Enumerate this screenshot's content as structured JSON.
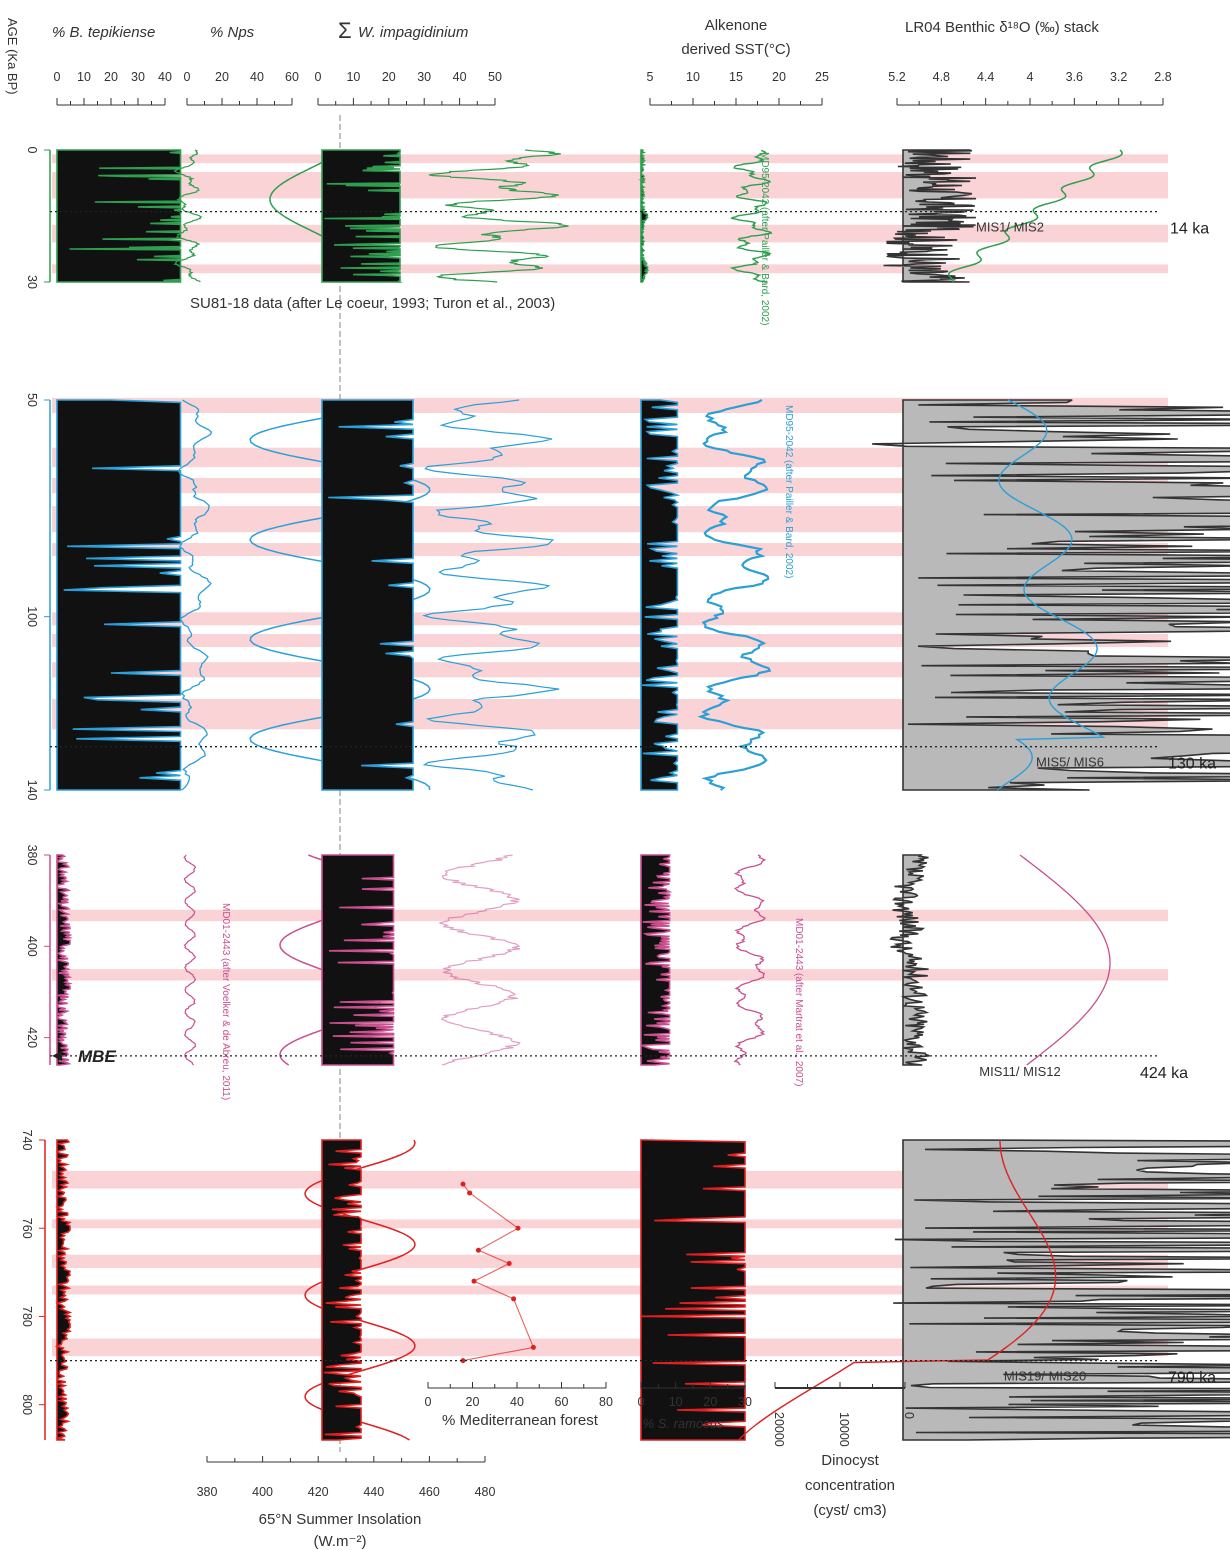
{
  "chart_data": {
    "type": "line",
    "figure": "multi-proxy stratigraphic panels",
    "y_axis": {
      "label": "AGE (Ka BP)",
      "panels": [
        {
          "id": "p1",
          "color": "#2e9e4f",
          "ticks": [
            "0",
            "30"
          ],
          "range": [
            0,
            30
          ]
        },
        {
          "id": "p2",
          "color": "#2a9fd8",
          "ticks": [
            "50",
            "100",
            "140"
          ],
          "range": [
            50,
            140
          ]
        },
        {
          "id": "p3",
          "color": "#c94f8f",
          "ticks": [
            "380",
            "400",
            "420"
          ],
          "range": [
            380,
            426
          ]
        },
        {
          "id": "p4",
          "color": "#e02020",
          "ticks": [
            "740",
            "760",
            "780",
            "800"
          ],
          "range": [
            740,
            808
          ]
        }
      ]
    },
    "columns": [
      {
        "id": "btep",
        "label": "% B. tepikiense",
        "ticks": [
          "0",
          "10",
          "20",
          "30",
          "40"
        ],
        "xlim": [
          0,
          40
        ]
      },
      {
        "id": "nps",
        "label": "% Nps",
        "ticks": [
          "0",
          "20",
          "40",
          "60"
        ],
        "xlim": [
          0,
          60
        ]
      },
      {
        "id": "wimp",
        "label": "W. impagidinium",
        "prefix": "Σ",
        "ticks": [
          "0",
          "10",
          "20",
          "30",
          "40",
          "50"
        ],
        "xlim": [
          0,
          50
        ]
      },
      {
        "id": "sst",
        "label_line1": "Alkenone",
        "label_line2": "derived SST(°C)",
        "ticks": [
          "5",
          "10",
          "15",
          "20",
          "25"
        ],
        "xlim": [
          5,
          25
        ]
      },
      {
        "id": "lr04",
        "label": "LR04 Benthic δ¹⁸O (‰) stack",
        "ticks": [
          "5.2",
          "4.8",
          "4.4",
          "4",
          "3.6",
          "3.2",
          "2.8"
        ],
        "xlim": [
          5.2,
          2.8
        ]
      }
    ],
    "bottom_axes": [
      {
        "id": "medforest",
        "label": "% Mediterranean forest",
        "ticks": [
          "0",
          "20",
          "40",
          "60",
          "80"
        ],
        "xlim": [
          0,
          80
        ]
      },
      {
        "id": "sramosus",
        "label": "% S. ramosus",
        "ticks": [
          "0",
          "10",
          "20",
          "30"
        ],
        "xlim": [
          0,
          30
        ]
      },
      {
        "id": "dino",
        "label_line1": "Dinocyst",
        "label_line2": "concentration",
        "label_line3": "(cyst/ cm3)",
        "ticks": [
          "20000",
          "10000",
          "0"
        ],
        "xlim": [
          25000,
          0
        ]
      },
      {
        "id": "insol",
        "label_line1": "65°N Summer Insolation",
        "label_line2": "(W.m⁻²)",
        "ticks": [
          "380",
          "400",
          "420",
          "440",
          "460",
          "480"
        ],
        "xlim": [
          375,
          485
        ]
      }
    ],
    "boundaries": [
      {
        "label": "MIS1/ MIS2",
        "age": "14 ka"
      },
      {
        "label": "MIS5/ MIS6",
        "age": "130 ka"
      },
      {
        "label": "MIS11/ MIS12",
        "age": "424 ka"
      },
      {
        "label": "MIS19/ MIS20",
        "age": "790 ka"
      }
    ],
    "annotations": {
      "su81": "SU81-18 data (after Le coeur, 1993; Turon et al., 2003)",
      "sst_p1": "MD95-2042 (after Pailler & Bard, 2002)",
      "sst_p2": "MD95-2042 (after Pailler & Bard, 2002)",
      "nps_p3": "MD01-2443 (after Voelker & de Abreu, 2011)",
      "sst_p3": "MD01-2443 (after Martrat et al., 2007)",
      "mbe": "MBE"
    },
    "warm_bands": {
      "p1": [
        [
          1,
          3
        ],
        [
          5,
          11
        ],
        [
          17,
          21
        ],
        [
          26,
          28
        ]
      ],
      "p2": [
        [
          49.5,
          53
        ],
        [
          61,
          65.5
        ],
        [
          68,
          71.5
        ],
        [
          74.5,
          80.5
        ],
        [
          83,
          86
        ],
        [
          99,
          102
        ],
        [
          104,
          107
        ],
        [
          110.5,
          114
        ],
        [
          119,
          126
        ]
      ],
      "p3": [
        [
          392,
          394.5
        ],
        [
          405,
          407.5
        ]
      ],
      "p4": [
        [
          747,
          751
        ],
        [
          758,
          760
        ],
        [
          766,
          769
        ],
        [
          773,
          775
        ],
        [
          785,
          789
        ]
      ]
    },
    "colors": {
      "band": "#f9d3d6",
      "fill": "#111111",
      "gray": "#b9b9b9",
      "p1": "#2e9e4f",
      "p2": "#2a9fd8",
      "p3": "#c94f8f",
      "p4": "#e02020"
    }
  }
}
